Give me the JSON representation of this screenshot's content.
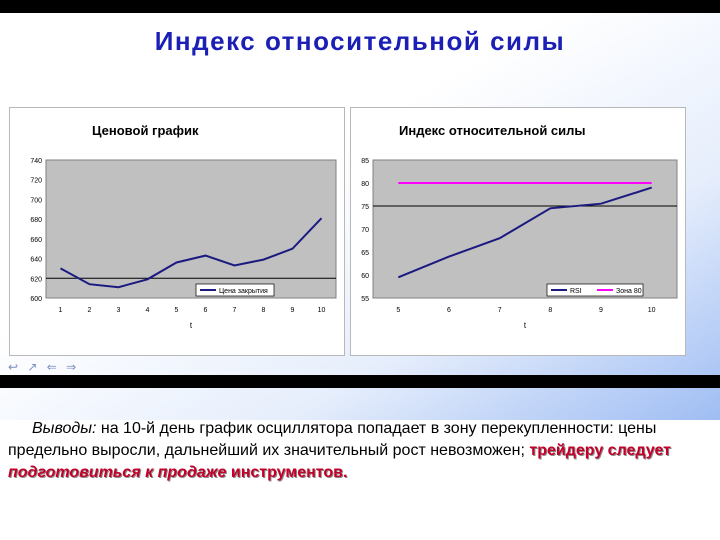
{
  "slide": {
    "title": "Индекс относительной силы"
  },
  "conclusion": {
    "lead": "Выводы:",
    "text": "на 10-й день график осциллятора попадает в зону перекупленности: цены предельно выросли, дальнейший их значительный рост невозможен;",
    "hl1": "трейдеру следует",
    "hl2": "подготовиться к продаже",
    "hl3": "инструментов."
  },
  "nav": {
    "arrows": "↩ ↗ ⇐ ⇒"
  },
  "colors": {
    "plot_bg": "#c0c0c0",
    "price_line": "#1a1a80",
    "rsi_line": "#1a1a80",
    "level_line": "#ff00ff",
    "title": "#1b1fb5",
    "highlight": "#c4002a"
  },
  "chart_data": [
    {
      "type": "line",
      "title": "Ценовой график",
      "xlabel": "t",
      "ylabel": "",
      "x": [
        1,
        2,
        3,
        4,
        5,
        6,
        7,
        8,
        9,
        10
      ],
      "x_ticks": [
        "1",
        "2",
        "3",
        "4",
        "5",
        "6",
        "7",
        "8",
        "9",
        "10"
      ],
      "y_ticks": [
        "600",
        "620",
        "640",
        "660",
        "680",
        "700",
        "720",
        "740"
      ],
      "ylim": [
        600,
        740
      ],
      "grid": "horizontal",
      "legend": "bottom-right",
      "series": [
        {
          "name": "Цена закрытия",
          "values": [
            630,
            614,
            611,
            619,
            636,
            643,
            633,
            639,
            650,
            681
          ]
        }
      ],
      "reference_lines": [
        620
      ]
    },
    {
      "type": "line",
      "title": "Индекс относительной силы",
      "xlabel": "t",
      "ylabel": "",
      "x": [
        5,
        6,
        7,
        8,
        9,
        10
      ],
      "x_ticks": [
        "5",
        "6",
        "7",
        "8",
        "9",
        "10"
      ],
      "y_ticks": [
        "55",
        "60",
        "65",
        "70",
        "75",
        "80",
        "85"
      ],
      "ylim": [
        55,
        85
      ],
      "grid": "horizontal",
      "legend": "bottom-right",
      "series": [
        {
          "name": "RSI",
          "values": [
            59.5,
            64.0,
            68.0,
            74.5,
            75.5,
            79.0
          ]
        },
        {
          "name": "Зона 80",
          "values": [
            80,
            80,
            80,
            80,
            80,
            80
          ]
        }
      ],
      "reference_lines": [
        75
      ]
    }
  ]
}
